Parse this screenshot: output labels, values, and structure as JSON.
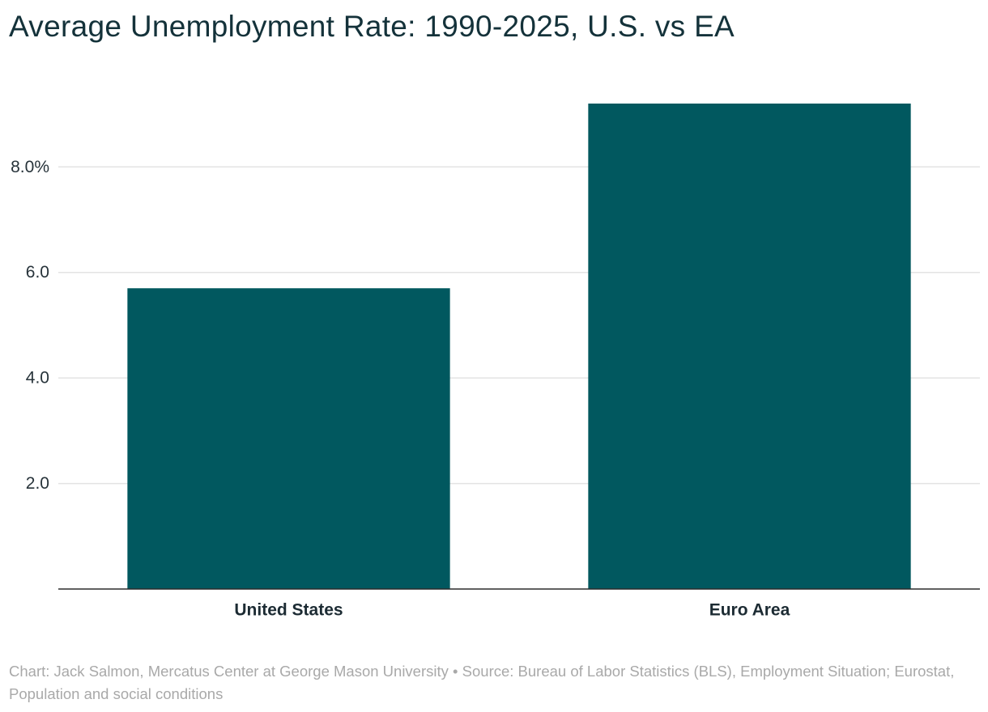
{
  "chart_data": {
    "type": "bar",
    "title": "Average Unemployment Rate: 1990-2025, U.S. vs EA",
    "categories": [
      "United States",
      "Euro Area"
    ],
    "values": [
      5.7,
      9.2
    ],
    "unit": "%",
    "ylim": [
      0,
      9.2
    ],
    "yticks": [
      2,
      4,
      6,
      8
    ],
    "ytick_labels": [
      "2.0",
      "4.0",
      "6.0",
      "8.0%"
    ],
    "grid": true,
    "bar_color": "#01585f",
    "xlabel": "",
    "ylabel": ""
  },
  "footer": {
    "credit": "Chart: Jack Salmon, Mercatus Center at George Mason University",
    "separator": "•",
    "source": "Source: Bureau of Labor Statistics (BLS), Employment Situation; Eurostat, Population and social conditions"
  }
}
